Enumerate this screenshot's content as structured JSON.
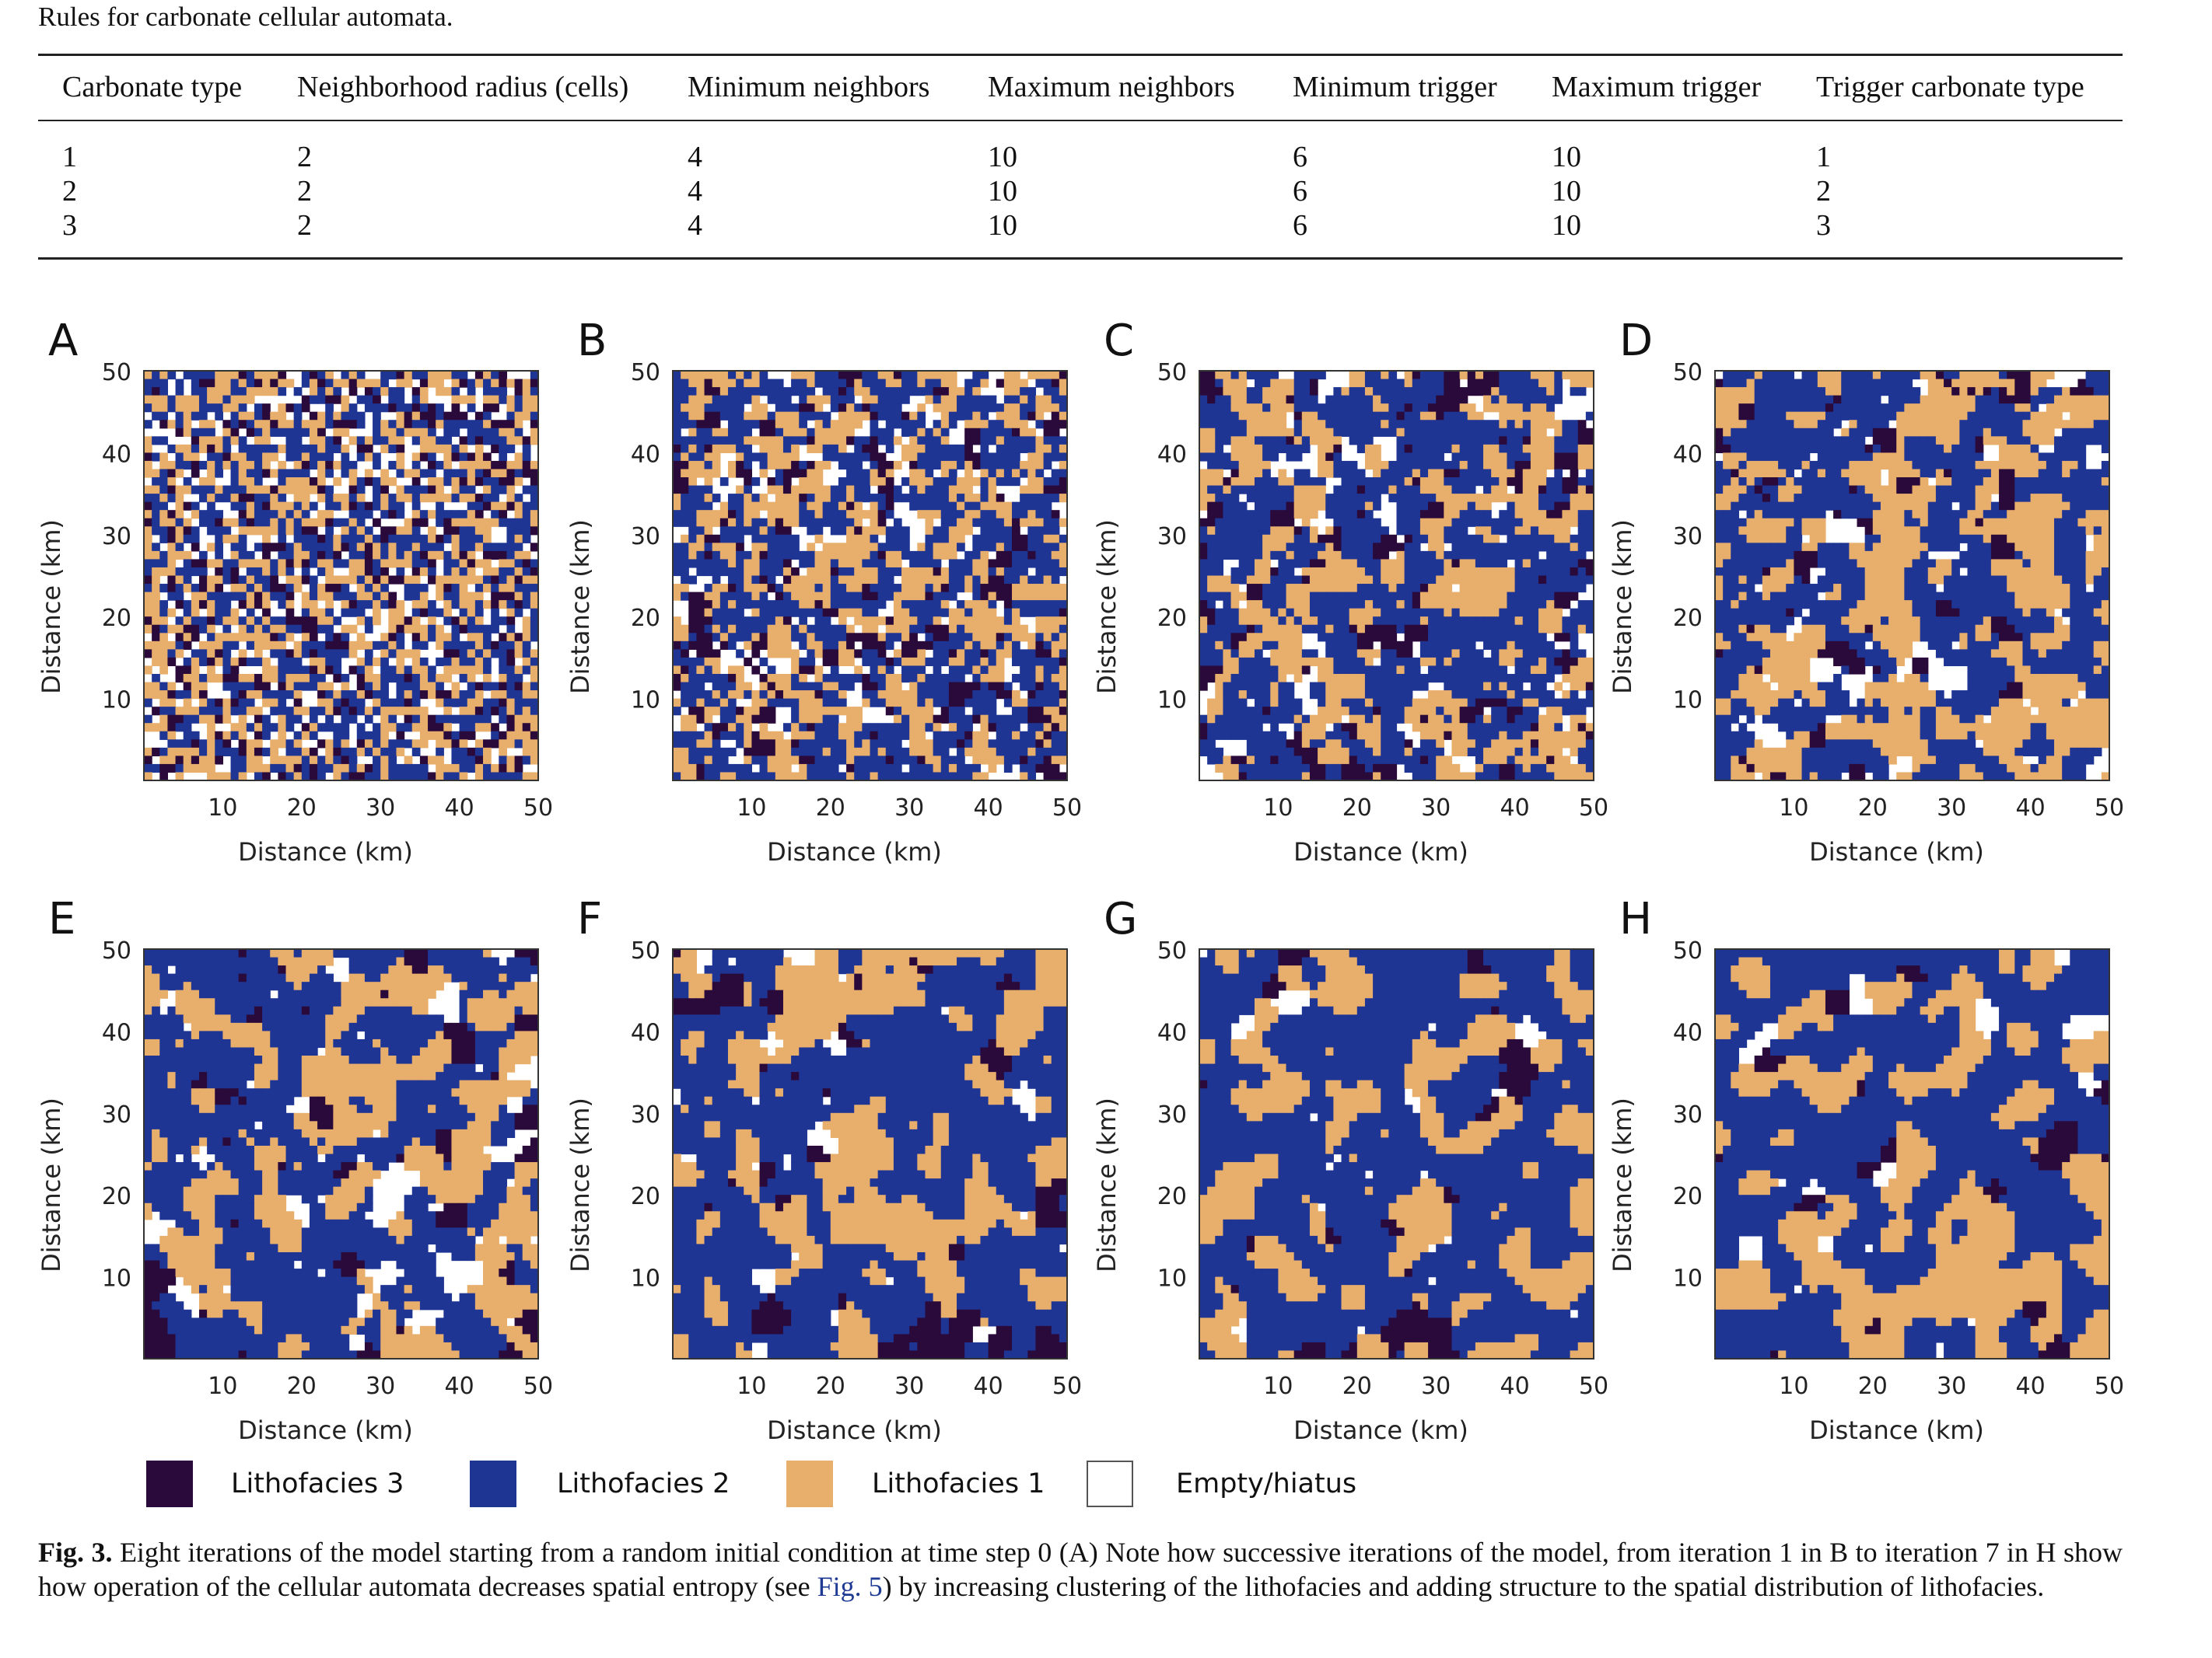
{
  "table": {
    "caption": "Rules for carbonate cellular automata.",
    "headers": [
      "Carbonate type",
      "Neighborhood radius (cells)",
      "Minimum neighbors",
      "Maximum neighbors",
      "Minimum trigger",
      "Maximum trigger",
      "Trigger carbonate type"
    ],
    "rows": [
      [
        "1",
        "2",
        "4",
        "10",
        "6",
        "10",
        "1"
      ],
      [
        "2",
        "2",
        "4",
        "10",
        "6",
        "10",
        "2"
      ],
      [
        "3",
        "2",
        "4",
        "10",
        "6",
        "10",
        "3"
      ]
    ]
  },
  "chart_data": {
    "type": "heatmap",
    "grid_size": [
      50,
      50
    ],
    "panels": [
      {
        "label": "A",
        "iteration": 0
      },
      {
        "label": "B",
        "iteration": 1
      },
      {
        "label": "C",
        "iteration": 2
      },
      {
        "label": "D",
        "iteration": 3
      },
      {
        "label": "E",
        "iteration": 4
      },
      {
        "label": "F",
        "iteration": 5
      },
      {
        "label": "G",
        "iteration": 6
      },
      {
        "label": "H",
        "iteration": 7
      }
    ],
    "xlabel": "Distance (km)",
    "ylabel": "Distance (km)",
    "xlim": [
      0,
      50
    ],
    "ylim": [
      0,
      50
    ],
    "xticks": [
      "10",
      "20",
      "30",
      "40",
      "50"
    ],
    "yticks": [
      "10",
      "20",
      "30",
      "40",
      "50"
    ],
    "categories": [
      {
        "name": "Lithofacies 3",
        "color": "#2a0a3a"
      },
      {
        "name": "Lithofacies 2",
        "color": "#1f3594"
      },
      {
        "name": "Lithofacies 1",
        "color": "#e8ae6c"
      },
      {
        "name": "Empty/hiatus",
        "color": "#ffffff"
      }
    ]
  },
  "caption": {
    "label": "Fig. 3.",
    "text_before": " Eight iterations of the model starting from a random initial condition at time step 0 (A) Note how successive iterations of the model, from iteration 1 in B to iteration 7 in H show how operation of the cellular automata decreases spatial entropy (see ",
    "link": "Fig. 5",
    "text_after": ") by increasing clustering of the lithofacies and adding structure to the spatial distribution of lithofacies."
  }
}
